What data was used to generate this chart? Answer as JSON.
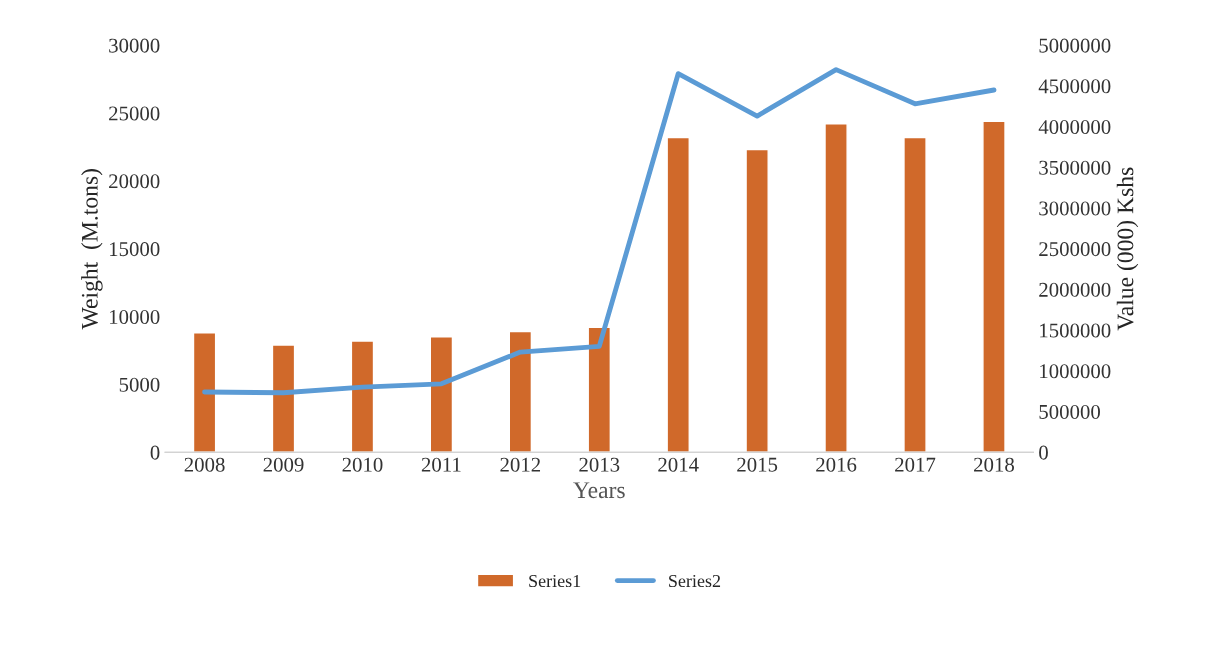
{
  "chart_data": {
    "type": "bar",
    "xlabel": "Years",
    "ylabel": "Weight  (M.tons)",
    "y2label": "Value (000) Kshs",
    "categories": [
      "2008",
      "2009",
      "2010",
      "2011",
      "2012",
      "2013",
      "2014",
      "2015",
      "2016",
      "2017",
      "2018"
    ],
    "series": [
      {
        "name": "Series1",
        "color": "#d0692a",
        "values": [
          8800,
          7900,
          8200,
          8500,
          8900,
          9200,
          23200,
          22300,
          24200,
          23200,
          24400
        ]
      },
      {
        "name": "Series2",
        "type": "line",
        "axis": "y2",
        "color": "#5b9bd5",
        "values": [
          740000,
          730000,
          800000,
          840000,
          1230000,
          1300000,
          4650000,
          4130000,
          4700000,
          4280000,
          4450000
        ]
      }
    ],
    "ylim": [
      0,
      30000
    ],
    "yticks": [
      0,
      5000,
      10000,
      15000,
      20000,
      25000,
      30000
    ],
    "y2lim": [
      0,
      5000000
    ],
    "y2ticks": [
      0,
      500000,
      1000000,
      1500000,
      2000000,
      2500000,
      3000000,
      3500000,
      4000000,
      4500000,
      5000000
    ],
    "grid": false,
    "legend": "bottom",
    "marker": "none",
    "line_style": "solid"
  }
}
